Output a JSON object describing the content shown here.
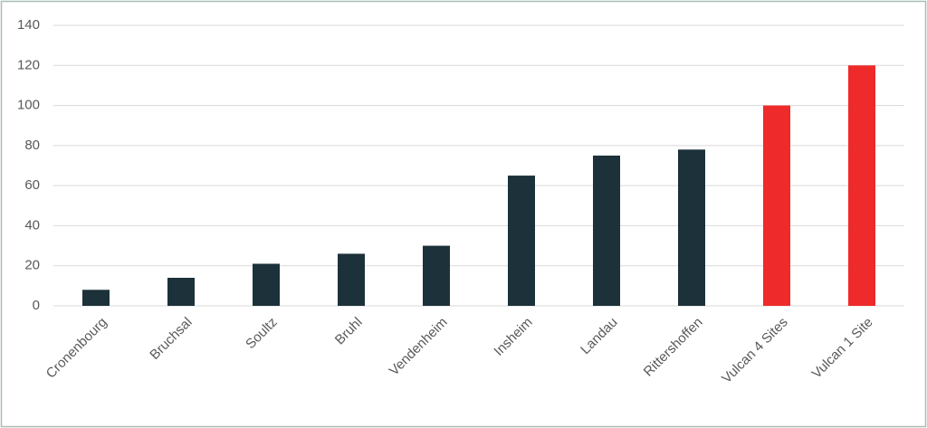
{
  "chart_data": {
    "type": "bar",
    "categories": [
      "Cronenbourg",
      "Bruchsal",
      "Soultz",
      "Bruhl",
      "Vendenheim",
      "Insheim",
      "Landau",
      "Rittershoffen",
      "Vulcan 4 Sites",
      "Vulcan 1 Site"
    ],
    "values": [
      8,
      14,
      21,
      26,
      30,
      65,
      75,
      78,
      100,
      120
    ],
    "colors": [
      "#1c313a",
      "#1c313a",
      "#1c313a",
      "#1c313a",
      "#1c313a",
      "#1c313a",
      "#1c313a",
      "#1c313a",
      "#ee2a2a",
      "#ee2a2a"
    ],
    "ylim": [
      0,
      140
    ],
    "yticks": [
      0,
      20,
      40,
      60,
      80,
      100,
      120,
      140
    ],
    "grid": true
  }
}
